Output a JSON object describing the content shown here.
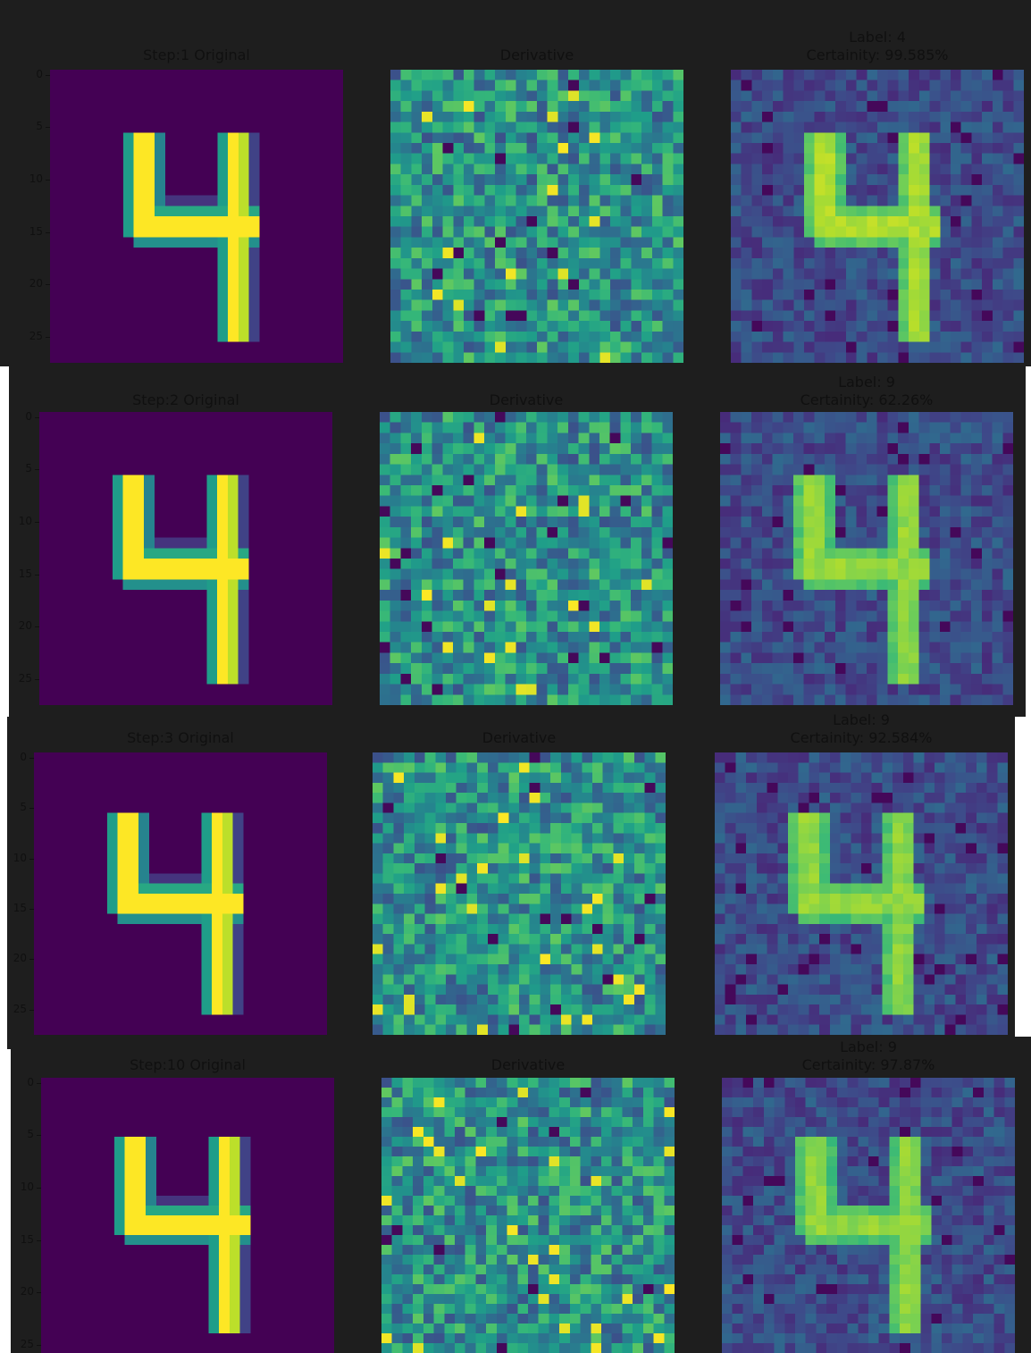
{
  "colors": {
    "background": "#1e1e1e",
    "text": "#101010",
    "colormap": "viridis"
  },
  "yticks": [
    "0",
    "5",
    "10",
    "15",
    "20",
    "25"
  ],
  "chart_data": [
    {
      "type": "heatmap",
      "title": "Step:1 Original",
      "row": 0,
      "kind": "original"
    },
    {
      "type": "heatmap",
      "title": "Derivative",
      "row": 0,
      "kind": "derivative",
      "seed": 11
    },
    {
      "type": "heatmap",
      "title_line1": "Label: 4",
      "title_line2": "Certainity: 99.585%",
      "row": 0,
      "kind": "adversarial",
      "seed": 101,
      "strength": 0.95
    },
    {
      "type": "heatmap",
      "title": "Step:2 Original",
      "row": 1,
      "kind": "original"
    },
    {
      "type": "heatmap",
      "title": "Derivative",
      "row": 1,
      "kind": "derivative",
      "seed": 22
    },
    {
      "type": "heatmap",
      "title_line1": "Label: 9",
      "title_line2": "Certainity: 62.26%",
      "row": 1,
      "kind": "adversarial",
      "seed": 202,
      "strength": 0.82
    },
    {
      "type": "heatmap",
      "title": "Step:3 Original",
      "row": 2,
      "kind": "original"
    },
    {
      "type": "heatmap",
      "title": "Derivative",
      "row": 2,
      "kind": "derivative",
      "seed": 33
    },
    {
      "type": "heatmap",
      "title_line1": "Label: 9",
      "title_line2": "Certainity: 92.584%",
      "row": 2,
      "kind": "adversarial",
      "seed": 303,
      "strength": 0.8
    },
    {
      "type": "heatmap",
      "title": "Step:10 Original",
      "row": 3,
      "kind": "original"
    },
    {
      "type": "heatmap",
      "title": "Derivative",
      "row": 3,
      "kind": "derivative",
      "seed": 44
    },
    {
      "type": "heatmap",
      "title_line1": "Label: 9",
      "title_line2": "Certainity: 97.87%",
      "row": 3,
      "kind": "adversarial",
      "seed": 404,
      "strength": 0.8
    }
  ]
}
